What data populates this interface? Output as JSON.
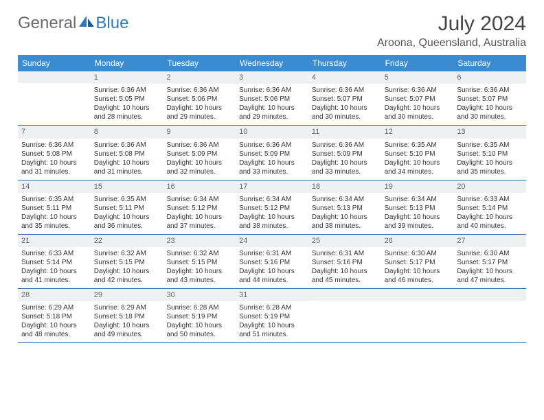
{
  "logo": {
    "text1": "General",
    "text2": "Blue"
  },
  "title": "July 2024",
  "location": "Aroona, Queensland, Australia",
  "dayHeaders": [
    "Sunday",
    "Monday",
    "Tuesday",
    "Wednesday",
    "Thursday",
    "Friday",
    "Saturday"
  ],
  "colors": {
    "headerBg": "#3a8bd0",
    "weekBorder": "#2b6aa8",
    "dayNumBg": "#eef0f2"
  },
  "weeks": [
    [
      {
        "n": "",
        "lines": []
      },
      {
        "n": "1",
        "lines": [
          "Sunrise: 6:36 AM",
          "Sunset: 5:05 PM",
          "Daylight: 10 hours and 28 minutes."
        ]
      },
      {
        "n": "2",
        "lines": [
          "Sunrise: 6:36 AM",
          "Sunset: 5:06 PM",
          "Daylight: 10 hours and 29 minutes."
        ]
      },
      {
        "n": "3",
        "lines": [
          "Sunrise: 6:36 AM",
          "Sunset: 5:06 PM",
          "Daylight: 10 hours and 29 minutes."
        ]
      },
      {
        "n": "4",
        "lines": [
          "Sunrise: 6:36 AM",
          "Sunset: 5:07 PM",
          "Daylight: 10 hours and 30 minutes."
        ]
      },
      {
        "n": "5",
        "lines": [
          "Sunrise: 6:36 AM",
          "Sunset: 5:07 PM",
          "Daylight: 10 hours and 30 minutes."
        ]
      },
      {
        "n": "6",
        "lines": [
          "Sunrise: 6:36 AM",
          "Sunset: 5:07 PM",
          "Daylight: 10 hours and 30 minutes."
        ]
      }
    ],
    [
      {
        "n": "7",
        "lines": [
          "Sunrise: 6:36 AM",
          "Sunset: 5:08 PM",
          "Daylight: 10 hours and 31 minutes."
        ]
      },
      {
        "n": "8",
        "lines": [
          "Sunrise: 6:36 AM",
          "Sunset: 5:08 PM",
          "Daylight: 10 hours and 31 minutes."
        ]
      },
      {
        "n": "9",
        "lines": [
          "Sunrise: 6:36 AM",
          "Sunset: 5:09 PM",
          "Daylight: 10 hours and 32 minutes."
        ]
      },
      {
        "n": "10",
        "lines": [
          "Sunrise: 6:36 AM",
          "Sunset: 5:09 PM",
          "Daylight: 10 hours and 33 minutes."
        ]
      },
      {
        "n": "11",
        "lines": [
          "Sunrise: 6:36 AM",
          "Sunset: 5:09 PM",
          "Daylight: 10 hours and 33 minutes."
        ]
      },
      {
        "n": "12",
        "lines": [
          "Sunrise: 6:35 AM",
          "Sunset: 5:10 PM",
          "Daylight: 10 hours and 34 minutes."
        ]
      },
      {
        "n": "13",
        "lines": [
          "Sunrise: 6:35 AM",
          "Sunset: 5:10 PM",
          "Daylight: 10 hours and 35 minutes."
        ]
      }
    ],
    [
      {
        "n": "14",
        "lines": [
          "Sunrise: 6:35 AM",
          "Sunset: 5:11 PM",
          "Daylight: 10 hours and 35 minutes."
        ]
      },
      {
        "n": "15",
        "lines": [
          "Sunrise: 6:35 AM",
          "Sunset: 5:11 PM",
          "Daylight: 10 hours and 36 minutes."
        ]
      },
      {
        "n": "16",
        "lines": [
          "Sunrise: 6:34 AM",
          "Sunset: 5:12 PM",
          "Daylight: 10 hours and 37 minutes."
        ]
      },
      {
        "n": "17",
        "lines": [
          "Sunrise: 6:34 AM",
          "Sunset: 5:12 PM",
          "Daylight: 10 hours and 38 minutes."
        ]
      },
      {
        "n": "18",
        "lines": [
          "Sunrise: 6:34 AM",
          "Sunset: 5:13 PM",
          "Daylight: 10 hours and 38 minutes."
        ]
      },
      {
        "n": "19",
        "lines": [
          "Sunrise: 6:34 AM",
          "Sunset: 5:13 PM",
          "Daylight: 10 hours and 39 minutes."
        ]
      },
      {
        "n": "20",
        "lines": [
          "Sunrise: 6:33 AM",
          "Sunset: 5:14 PM",
          "Daylight: 10 hours and 40 minutes."
        ]
      }
    ],
    [
      {
        "n": "21",
        "lines": [
          "Sunrise: 6:33 AM",
          "Sunset: 5:14 PM",
          "Daylight: 10 hours and 41 minutes."
        ]
      },
      {
        "n": "22",
        "lines": [
          "Sunrise: 6:32 AM",
          "Sunset: 5:15 PM",
          "Daylight: 10 hours and 42 minutes."
        ]
      },
      {
        "n": "23",
        "lines": [
          "Sunrise: 6:32 AM",
          "Sunset: 5:15 PM",
          "Daylight: 10 hours and 43 minutes."
        ]
      },
      {
        "n": "24",
        "lines": [
          "Sunrise: 6:31 AM",
          "Sunset: 5:16 PM",
          "Daylight: 10 hours and 44 minutes."
        ]
      },
      {
        "n": "25",
        "lines": [
          "Sunrise: 6:31 AM",
          "Sunset: 5:16 PM",
          "Daylight: 10 hours and 45 minutes."
        ]
      },
      {
        "n": "26",
        "lines": [
          "Sunrise: 6:30 AM",
          "Sunset: 5:17 PM",
          "Daylight: 10 hours and 46 minutes."
        ]
      },
      {
        "n": "27",
        "lines": [
          "Sunrise: 6:30 AM",
          "Sunset: 5:17 PM",
          "Daylight: 10 hours and 47 minutes."
        ]
      }
    ],
    [
      {
        "n": "28",
        "lines": [
          "Sunrise: 6:29 AM",
          "Sunset: 5:18 PM",
          "Daylight: 10 hours and 48 minutes."
        ]
      },
      {
        "n": "29",
        "lines": [
          "Sunrise: 6:29 AM",
          "Sunset: 5:18 PM",
          "Daylight: 10 hours and 49 minutes."
        ]
      },
      {
        "n": "30",
        "lines": [
          "Sunrise: 6:28 AM",
          "Sunset: 5:19 PM",
          "Daylight: 10 hours and 50 minutes."
        ]
      },
      {
        "n": "31",
        "lines": [
          "Sunrise: 6:28 AM",
          "Sunset: 5:19 PM",
          "Daylight: 10 hours and 51 minutes."
        ]
      },
      {
        "n": "",
        "lines": []
      },
      {
        "n": "",
        "lines": []
      },
      {
        "n": "",
        "lines": []
      }
    ]
  ]
}
